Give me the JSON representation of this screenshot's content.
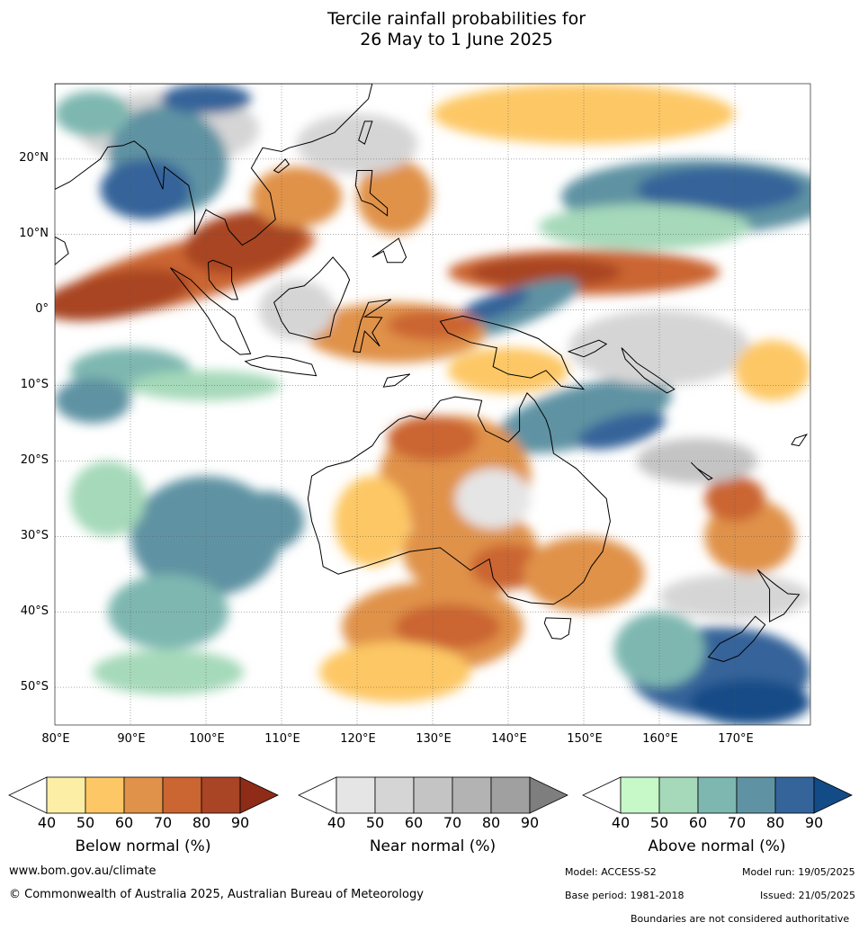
{
  "title": {
    "line1": "Tercile rainfall probabilities for",
    "line2": "26 May to 1 June 2025"
  },
  "map": {
    "lon_range": [
      80,
      180
    ],
    "lat_range": [
      -55,
      30
    ],
    "lat_labels": [
      "20°N",
      "10°N",
      "0°",
      "10°S",
      "20°S",
      "30°S",
      "40°S",
      "50°S"
    ],
    "lon_labels": [
      "80°E",
      "90°E",
      "100°E",
      "110°E",
      "120°E",
      "130°E",
      "140°E",
      "150°E",
      "160°E",
      "170°E"
    ],
    "colors": {
      "below": [
        "#fdeea5",
        "#fdc765",
        "#e0924a",
        "#cb6531",
        "#a94424",
        "#8e2c17"
      ],
      "near": [
        "#e5e5e5",
        "#d5d5d5",
        "#c4c4c4",
        "#b3b3b3",
        "#a0a0a0",
        "#7e7e7e"
      ],
      "above": [
        "#c6f8c8",
        "#a5d9b9",
        "#7eb7b0",
        "#5f93a3",
        "#34649a",
        "#134b87"
      ]
    }
  },
  "colorbars": [
    {
      "title": "Below normal (%)",
      "ticks": [
        "40",
        "50",
        "60",
        "70",
        "80",
        "90"
      ]
    },
    {
      "title": "Near normal (%)",
      "ticks": [
        "40",
        "50",
        "60",
        "70",
        "80",
        "90"
      ]
    },
    {
      "title": "Above normal (%)",
      "ticks": [
        "40",
        "50",
        "60",
        "70",
        "80",
        "90"
      ]
    }
  ],
  "footer": {
    "website": "www.bom.gov.au/climate",
    "copyright": "© Commonwealth of Australia 2025, Australian Bureau of Meteorology",
    "model": "Model: ACCESS-S2",
    "model_run": "Model run: 19/05/2025",
    "base_period": "Base period: 1981-2018",
    "issued": "Issued: 21/05/2025",
    "disclaimer": "Boundaries are not considered authoritative"
  }
}
